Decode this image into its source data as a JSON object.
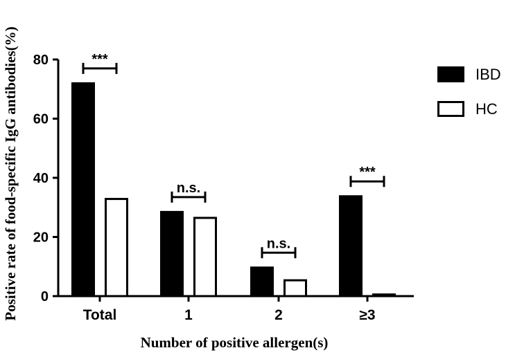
{
  "chart_data": {
    "type": "bar",
    "categories": [
      "Total",
      "1",
      "2",
      "≥3"
    ],
    "series": [
      {
        "name": "IBD",
        "values": [
          72.3,
          28.8,
          10.0,
          34.1
        ],
        "fill": "#000000"
      },
      {
        "name": "HC",
        "values": [
          33.2,
          26.8,
          5.7,
          0.9
        ],
        "fill": "#ffffff"
      }
    ],
    "ylabel": "Positive rate of food-specific IgG antibodies(%)",
    "xlabel": "Number of positive allergen(s)",
    "ylim": [
      0,
      80
    ],
    "yticks": [
      "0",
      "20",
      "40",
      "60",
      "80"
    ],
    "significance": [
      "***",
      "n.s.",
      "n.s.",
      "***"
    ],
    "grid": false,
    "legend_position": "top-right"
  }
}
